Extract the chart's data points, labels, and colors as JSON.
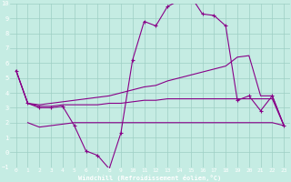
{
  "xlabel": "Windchill (Refroidissement éolien,°C)",
  "bg_color": "#c5ece3",
  "grid_color": "#9dcfc4",
  "line_color": "#880088",
  "axis_label_bg": "#440044",
  "xmin": 0,
  "xmax": 23,
  "ymin": -1,
  "ymax": 10,
  "yticks": [
    -1,
    0,
    1,
    2,
    3,
    4,
    5,
    6,
    7,
    8,
    9,
    10
  ],
  "xticks": [
    0,
    1,
    2,
    3,
    4,
    5,
    6,
    7,
    8,
    9,
    10,
    11,
    12,
    13,
    14,
    15,
    16,
    17,
    18,
    19,
    20,
    21,
    22,
    23
  ],
  "line1_x": [
    0,
    1,
    2,
    3,
    4,
    5,
    6,
    7,
    8,
    9,
    10,
    11,
    12,
    13,
    14,
    15,
    16,
    17,
    18,
    19,
    20,
    21,
    22,
    23
  ],
  "line1_y": [
    5.5,
    3.3,
    3.0,
    3.0,
    3.1,
    1.8,
    0.1,
    -0.2,
    -1.1,
    1.3,
    6.2,
    8.8,
    8.5,
    9.8,
    10.2,
    10.5,
    9.3,
    9.2,
    8.5,
    3.5,
    3.8,
    2.8,
    3.8,
    1.8
  ],
  "line2_x": [
    0,
    1,
    2,
    3,
    4,
    5,
    6,
    7,
    8,
    9,
    10,
    11,
    12,
    13,
    14,
    15,
    16,
    17,
    18,
    19,
    20,
    21,
    22,
    23
  ],
  "line2_y": [
    5.5,
    3.3,
    3.2,
    3.3,
    3.4,
    3.5,
    3.6,
    3.7,
    3.8,
    4.0,
    4.2,
    4.4,
    4.5,
    4.8,
    5.0,
    5.2,
    5.4,
    5.6,
    5.8,
    6.4,
    6.5,
    3.8,
    3.8,
    1.8
  ],
  "line3_x": [
    0,
    1,
    2,
    3,
    4,
    5,
    6,
    7,
    8,
    9,
    10,
    11,
    12,
    13,
    14,
    15,
    16,
    17,
    18,
    19,
    20,
    21,
    22,
    23
  ],
  "line3_y": [
    5.5,
    3.3,
    3.1,
    3.1,
    3.2,
    3.2,
    3.2,
    3.2,
    3.3,
    3.3,
    3.4,
    3.5,
    3.5,
    3.6,
    3.6,
    3.6,
    3.6,
    3.6,
    3.6,
    3.6,
    3.6,
    3.6,
    3.6,
    1.8
  ],
  "line4_x": [
    1,
    2,
    3,
    4,
    5,
    6,
    7,
    8,
    9,
    10,
    11,
    12,
    13,
    14,
    15,
    16,
    17,
    18,
    19,
    20,
    21,
    22,
    23
  ],
  "line4_y": [
    2.0,
    1.7,
    1.8,
    1.9,
    2.0,
    2.0,
    2.0,
    2.0,
    2.0,
    2.0,
    2.0,
    2.0,
    2.0,
    2.0,
    2.0,
    2.0,
    2.0,
    2.0,
    2.0,
    2.0,
    2.0,
    2.0,
    1.8
  ]
}
